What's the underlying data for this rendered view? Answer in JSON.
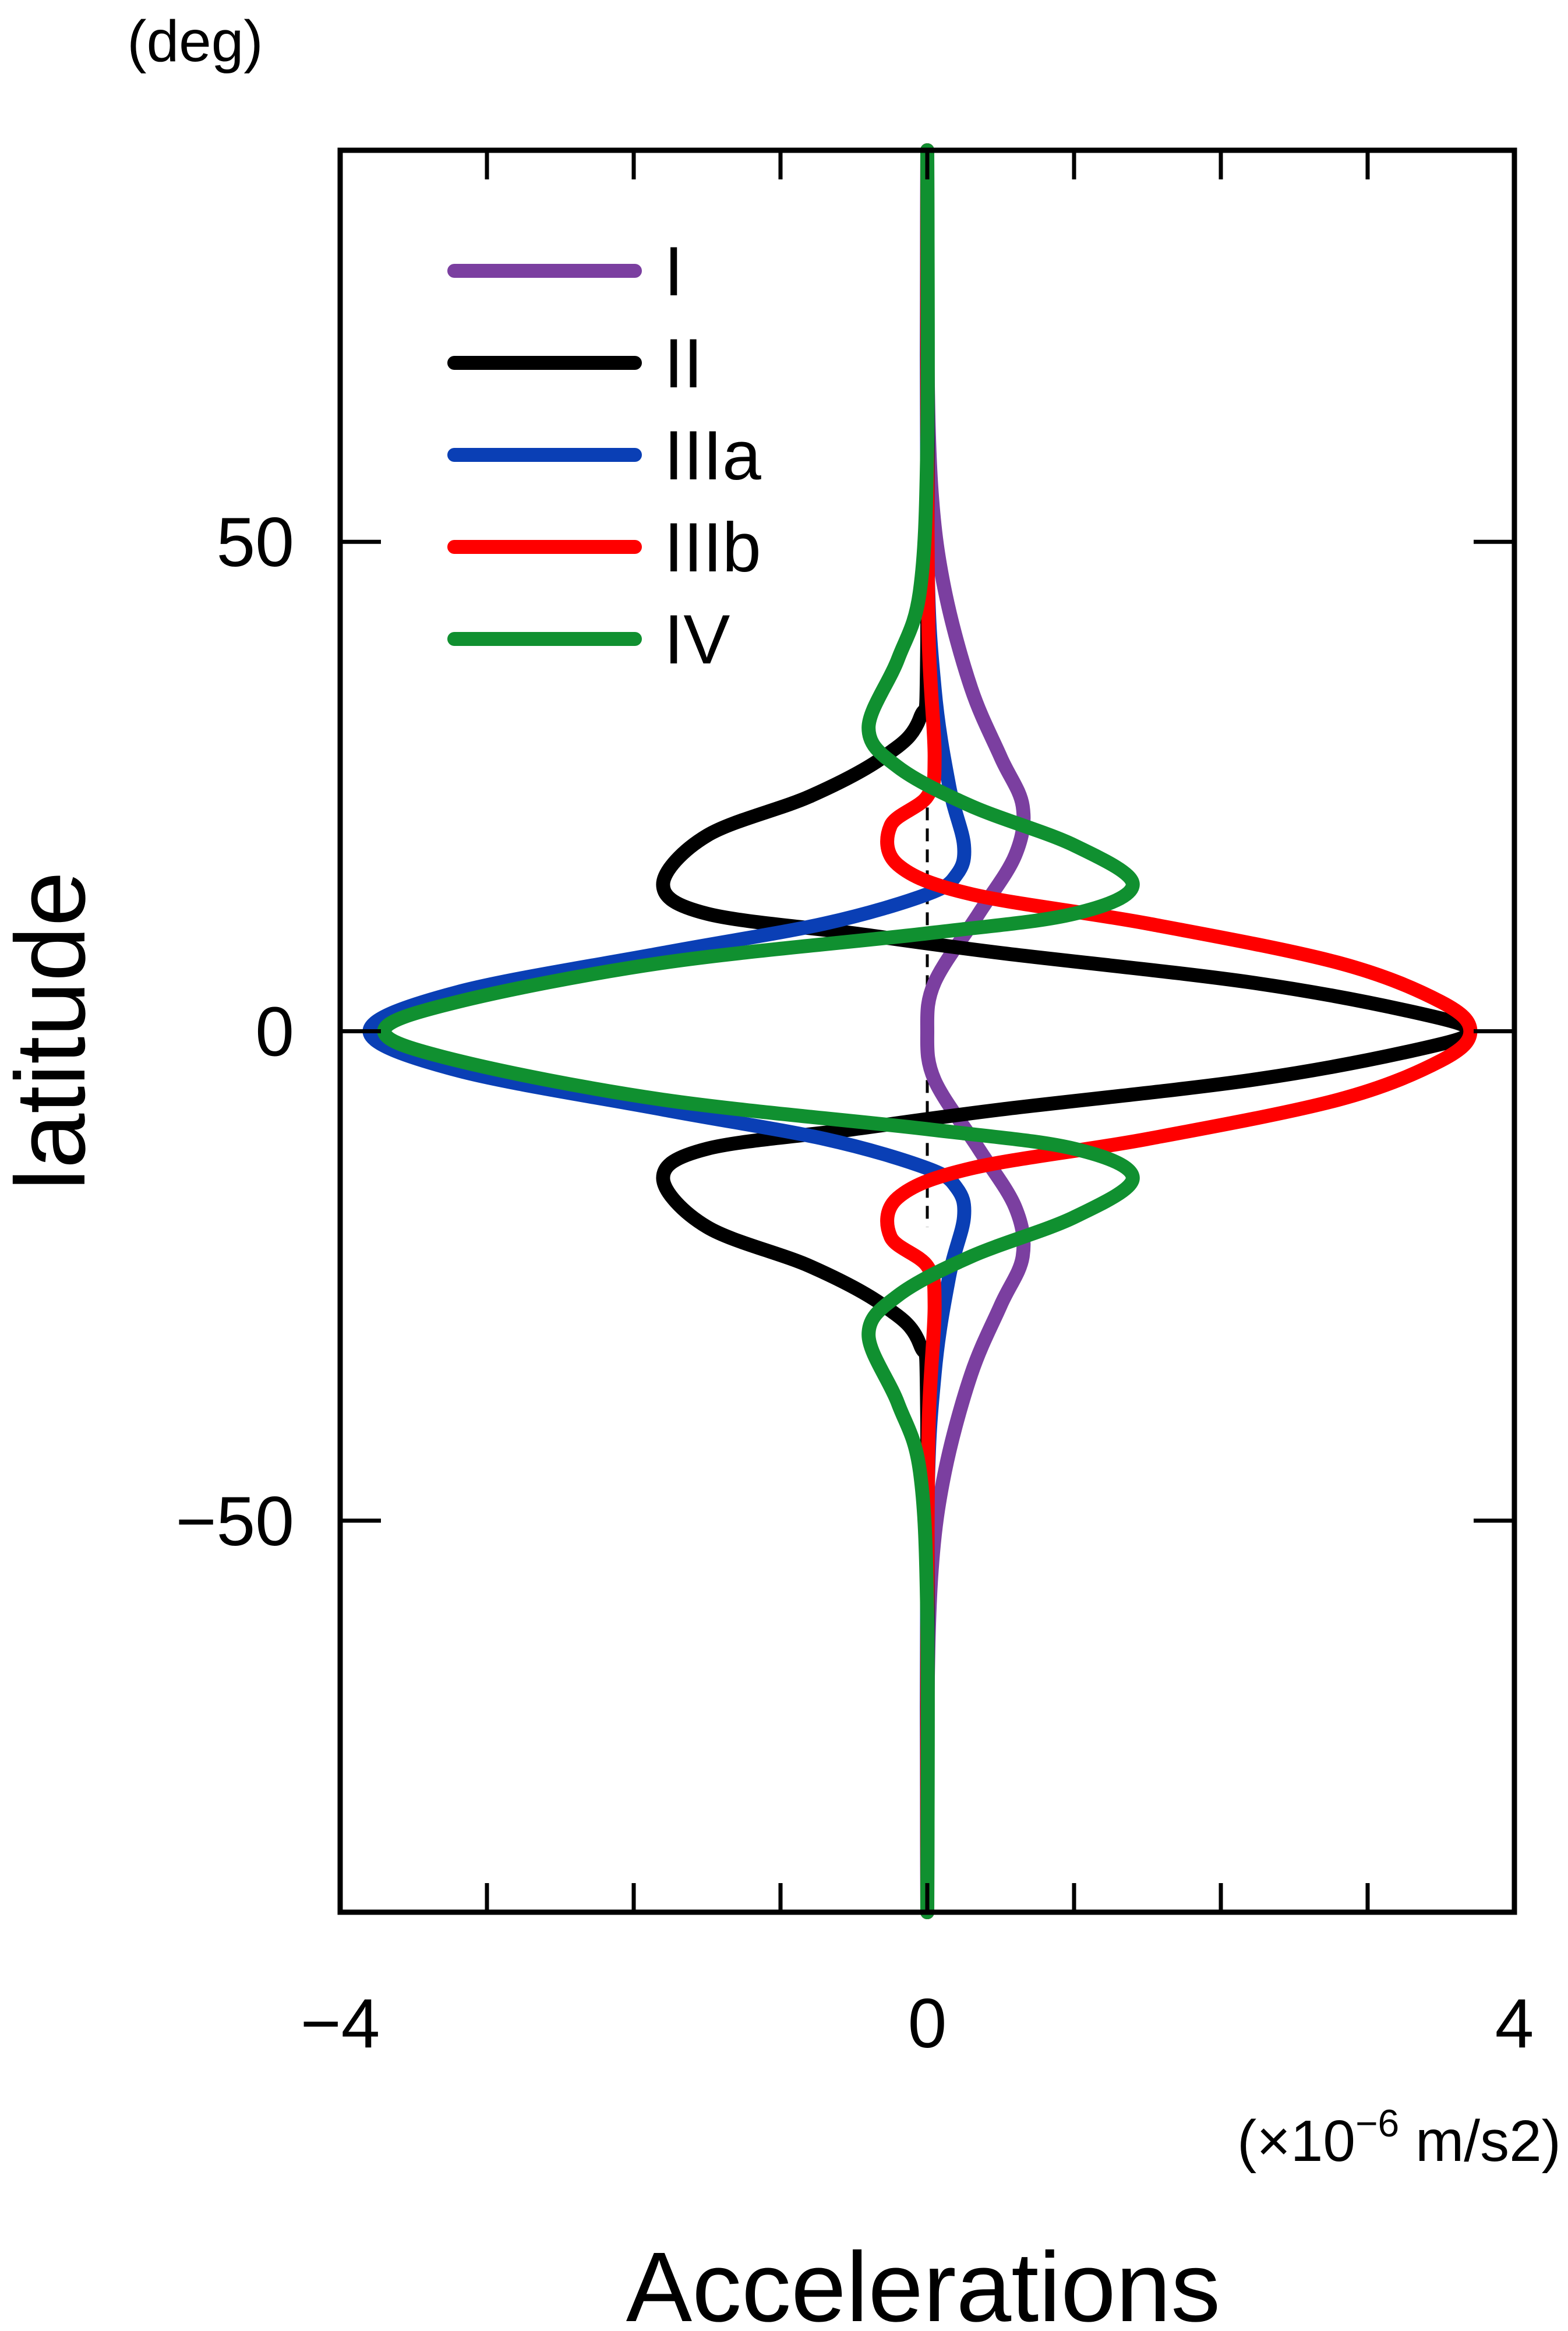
{
  "chart_data": {
    "type": "line",
    "orientation": "vertical",
    "title": "",
    "xlabel": "Accelerations",
    "xunit_prefix": "(×10",
    "xunit_exp": "−6",
    "xunit_suffix": " m/s2)",
    "ylabel": "latitude",
    "yunit": "(deg)",
    "xlim": [
      -4,
      4
    ],
    "ylim": [
      -90,
      90
    ],
    "xticks": [
      {
        "value": -4,
        "label": "−4"
      },
      {
        "value": 0,
        "label": "0"
      },
      {
        "value": 4,
        "label": "4"
      }
    ],
    "xminor": [
      -3,
      -2,
      -1,
      1,
      2,
      3
    ],
    "yticks": [
      {
        "value": 50,
        "label": "50"
      },
      {
        "value": 0,
        "label": "0"
      },
      {
        "value": -50,
        "label": "−50"
      }
    ],
    "zero_line": {
      "x": 0,
      "style": "dashed",
      "ylim": [
        -20,
        25
      ]
    },
    "grid": false,
    "legend_position": "top-left",
    "series": [
      {
        "name": "I",
        "color": "#7b3fa0",
        "points": [
          [
            0,
            90
          ],
          [
            0,
            70
          ],
          [
            0.03,
            55
          ],
          [
            0.12,
            45
          ],
          [
            0.3,
            35
          ],
          [
            0.5,
            28
          ],
          [
            0.65,
            23
          ],
          [
            0.6,
            18
          ],
          [
            0.35,
            12
          ],
          [
            0.05,
            5
          ],
          [
            0,
            0
          ],
          [
            0.05,
            -5
          ],
          [
            0.35,
            -12
          ],
          [
            0.6,
            -18
          ],
          [
            0.65,
            -23
          ],
          [
            0.5,
            -28
          ],
          [
            0.3,
            -35
          ],
          [
            0.12,
            -45
          ],
          [
            0.03,
            -55
          ],
          [
            0,
            -70
          ],
          [
            0,
            -90
          ]
        ]
      },
      {
        "name": "II",
        "color": "#000000",
        "points": [
          [
            0,
            90
          ],
          [
            0,
            40
          ],
          [
            -0.05,
            32
          ],
          [
            -0.3,
            28
          ],
          [
            -0.8,
            24
          ],
          [
            -1.5,
            20
          ],
          [
            -1.8,
            15
          ],
          [
            -1.5,
            12
          ],
          [
            -0.5,
            10
          ],
          [
            0.5,
            8
          ],
          [
            2.2,
            5
          ],
          [
            3.3,
            2
          ],
          [
            3.7,
            0
          ],
          [
            3.3,
            -2
          ],
          [
            2.2,
            -5
          ],
          [
            0.5,
            -8
          ],
          [
            -0.5,
            -10
          ],
          [
            -1.5,
            -12
          ],
          [
            -1.8,
            -15
          ],
          [
            -1.5,
            -20
          ],
          [
            -0.8,
            -24
          ],
          [
            -0.3,
            -28
          ],
          [
            -0.05,
            -32
          ],
          [
            0,
            -40
          ],
          [
            0,
            -90
          ]
        ]
      },
      {
        "name": "IIIa",
        "color": "#0a3fb5",
        "points": [
          [
            0,
            90
          ],
          [
            0,
            50
          ],
          [
            0.05,
            35
          ],
          [
            0.15,
            25
          ],
          [
            0.25,
            19
          ],
          [
            0.2,
            16
          ],
          [
            0,
            14
          ],
          [
            -0.7,
            11
          ],
          [
            -1.8,
            8
          ],
          [
            -3.2,
            4
          ],
          [
            -3.8,
            0
          ],
          [
            -3.2,
            -4
          ],
          [
            -1.8,
            -8
          ],
          [
            -0.7,
            -11
          ],
          [
            0,
            -14
          ],
          [
            0.2,
            -16
          ],
          [
            0.25,
            -19
          ],
          [
            0.15,
            -25
          ],
          [
            0.05,
            -35
          ],
          [
            0,
            -50
          ],
          [
            0,
            -90
          ]
        ]
      },
      {
        "name": "IIIb",
        "color": "#ff0000",
        "points": [
          [
            0,
            90
          ],
          [
            0,
            60
          ],
          [
            0.01,
            40
          ],
          [
            0.05,
            28
          ],
          [
            0,
            24
          ],
          [
            -0.25,
            21
          ],
          [
            -0.2,
            17
          ],
          [
            0.3,
            14
          ],
          [
            1.5,
            11
          ],
          [
            2.8,
            7
          ],
          [
            3.5,
            3
          ],
          [
            3.7,
            0
          ],
          [
            3.5,
            -3
          ],
          [
            2.8,
            -7
          ],
          [
            1.5,
            -11
          ],
          [
            0.3,
            -14
          ],
          [
            -0.2,
            -17
          ],
          [
            -0.25,
            -21
          ],
          [
            0,
            -24
          ],
          [
            0.05,
            -28
          ],
          [
            0.01,
            -40
          ],
          [
            0,
            -60
          ],
          [
            0,
            -90
          ]
        ]
      },
      {
        "name": "IV",
        "color": "#109030",
        "points": [
          [
            0,
            90
          ],
          [
            0,
            60
          ],
          [
            -0.05,
            45
          ],
          [
            -0.2,
            38
          ],
          [
            -0.4,
            31
          ],
          [
            -0.2,
            27
          ],
          [
            0.3,
            23
          ],
          [
            1,
            19
          ],
          [
            1.4,
            15
          ],
          [
            1,
            12
          ],
          [
            0,
            10
          ],
          [
            -1.8,
            7
          ],
          [
            -3.2,
            3
          ],
          [
            -3.7,
            0
          ],
          [
            -3.2,
            -3
          ],
          [
            -1.8,
            -7
          ],
          [
            0,
            -10
          ],
          [
            1,
            -12
          ],
          [
            1.4,
            -15
          ],
          [
            1,
            -19
          ],
          [
            0.3,
            -23
          ],
          [
            -0.2,
            -27
          ],
          [
            -0.4,
            -31
          ],
          [
            -0.2,
            -38
          ],
          [
            -0.05,
            -45
          ],
          [
            0,
            -60
          ],
          [
            0,
            -90
          ]
        ]
      }
    ]
  }
}
